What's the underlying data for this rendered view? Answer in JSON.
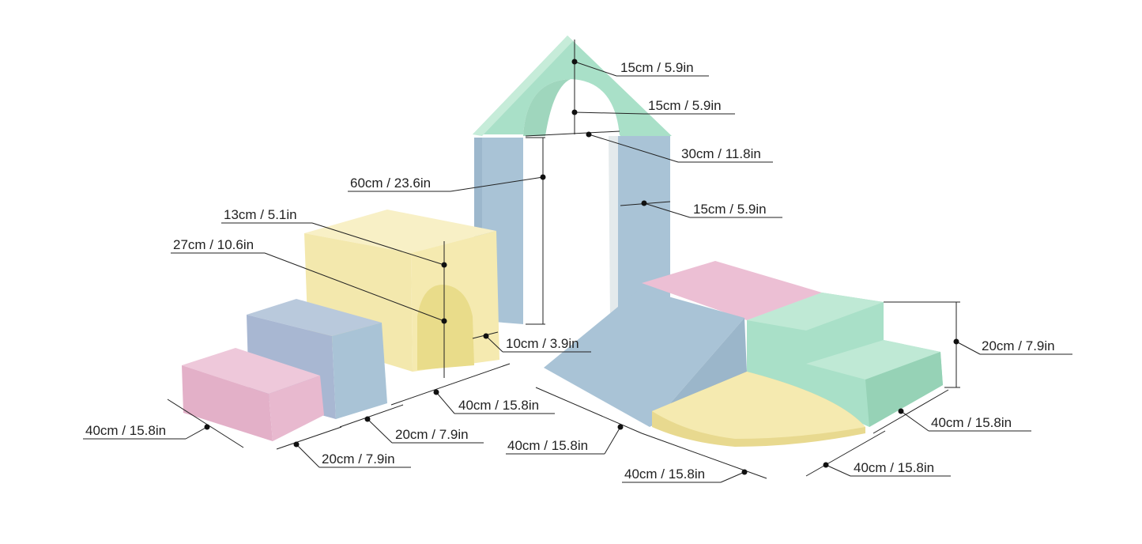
{
  "colors": {
    "green": "#a9e0c8",
    "blue": "#a9c3d6",
    "yellow": "#f5eab0",
    "pink": "#e8b9cf",
    "line": "#222222"
  },
  "labels": [
    "15cm / 5.9in",
    "15cm / 5.9in",
    "30cm / 11.8in",
    "60cm / 23.6in",
    "15cm / 5.9in",
    "13cm / 5.1in",
    "27cm / 10.6in",
    "10cm / 3.9in",
    "20cm / 7.9in",
    "40cm / 15.8in",
    "40cm / 15.8in",
    "40cm / 15.8in",
    "20cm / 7.9in",
    "40cm / 15.8in",
    "20cm / 7.9in",
    "40cm / 15.8in",
    "40cm / 15.8in"
  ]
}
